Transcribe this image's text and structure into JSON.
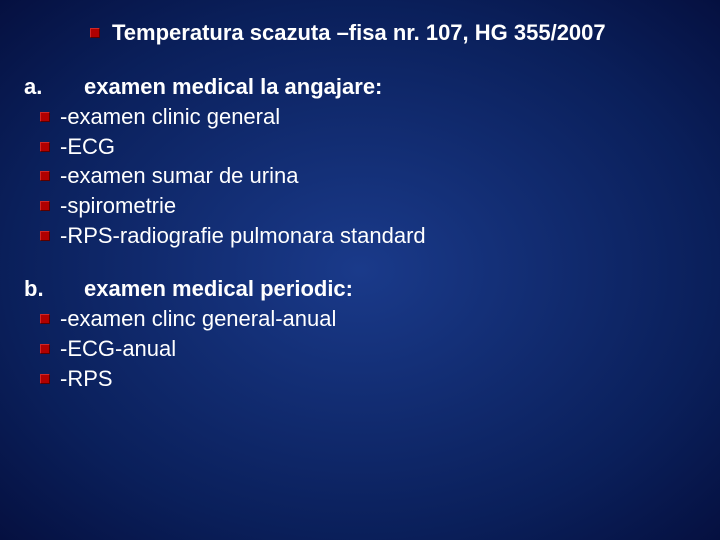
{
  "title": "Temperatura scazuta –fisa nr. 107, HG 355/2007",
  "sections": [
    {
      "letter": "a.",
      "heading": "examen medical la angajare:",
      "items": [
        "-examen clinic general",
        "-ECG",
        "-examen sumar de urina",
        "-spirometrie",
        "-RPS-radiografie pulmonara standard"
      ]
    },
    {
      "letter": "b.",
      "heading": "examen medical periodic:",
      "items": [
        "-examen clinc general-anual",
        "-ECG-anual",
        "-RPS"
      ]
    }
  ]
}
